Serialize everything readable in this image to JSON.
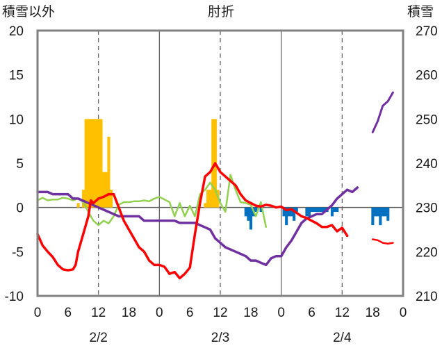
{
  "chart_data": {
    "type": "line",
    "title": "肘折",
    "left_axis_label": "積雪以外",
    "right_axis_label": "積雪",
    "left_ylim": [
      -10,
      20
    ],
    "right_ylim": [
      210,
      270
    ],
    "left_ticks": [
      "20",
      "15",
      "10",
      "5",
      "0",
      "-5",
      "-10"
    ],
    "right_ticks": [
      "270",
      "260",
      "250",
      "240",
      "230",
      "220",
      "210"
    ],
    "x_hour_ticks": [
      "0",
      "6",
      "12",
      "18",
      "0",
      "6",
      "12",
      "18",
      "0",
      "6",
      "12",
      "18",
      "0"
    ],
    "day_labels": [
      {
        "label": "2/2",
        "hour": 12
      },
      {
        "label": "2/3",
        "hour": 36
      },
      {
        "label": "2/4",
        "hour": 60
      }
    ],
    "x_range_hours": [
      0,
      72
    ],
    "grid": "dashed vertical lines at 12h, solid at day boundaries",
    "colors": {
      "precipitation": "#ffc000",
      "snow_change": "#0070c0",
      "temperature": "#ff0000",
      "wind": "#92d050",
      "snow_depth": "#7030a0",
      "grid": "#595959"
    },
    "precipitation_bars": [
      [
        8,
        0.5
      ],
      [
        9,
        2
      ],
      [
        9.5,
        10
      ],
      [
        10,
        10
      ],
      [
        10.5,
        10
      ],
      [
        11,
        10
      ],
      [
        11.5,
        10
      ],
      [
        12,
        10
      ],
      [
        12.5,
        10
      ],
      [
        13,
        4
      ],
      [
        13.5,
        4
      ],
      [
        14,
        8
      ],
      [
        14.5,
        2
      ],
      [
        33,
        0.5
      ],
      [
        33.5,
        2
      ],
      [
        34,
        2
      ],
      [
        34.5,
        10
      ],
      [
        35,
        10
      ],
      [
        35.5,
        2
      ]
    ],
    "snow_change_bars": [
      [
        41,
        -1
      ],
      [
        41.5,
        -1.5
      ],
      [
        42,
        -2.5
      ],
      [
        42.5,
        -1
      ],
      [
        43,
        -0.5
      ],
      [
        44,
        -0.5
      ],
      [
        48.5,
        -1
      ],
      [
        49,
        -2
      ],
      [
        49.5,
        -1
      ],
      [
        50,
        -1
      ],
      [
        50.5,
        -1.5
      ],
      [
        51,
        -0.5
      ],
      [
        53,
        -1
      ],
      [
        53.5,
        -1
      ],
      [
        54,
        -0.5
      ],
      [
        54.5,
        -0.5
      ],
      [
        55,
        -0.5
      ],
      [
        55.5,
        -0.5
      ],
      [
        56,
        -0.5
      ],
      [
        56.5,
        -0.5
      ],
      [
        57,
        -0.5
      ],
      [
        58,
        -1
      ],
      [
        58.5,
        -0.5
      ],
      [
        59,
        -0.5
      ],
      [
        66,
        -2
      ],
      [
        66.5,
        -1
      ],
      [
        67,
        -1
      ],
      [
        67.5,
        -2
      ],
      [
        68,
        -1
      ],
      [
        68.5,
        -1
      ],
      [
        69,
        -1.5
      ]
    ],
    "series": [
      {
        "key": "temperature",
        "axis": "left",
        "points": [
          [
            0,
            -3
          ],
          [
            1,
            -4.3
          ],
          [
            2,
            -5
          ],
          [
            3,
            -5.6
          ],
          [
            4,
            -6.5
          ],
          [
            5,
            -7
          ],
          [
            6,
            -7.1
          ],
          [
            7,
            -7
          ],
          [
            7.5,
            -6.5
          ],
          [
            8,
            -5
          ],
          [
            9,
            -3
          ],
          [
            10,
            -1
          ],
          [
            10.5,
            0.8
          ],
          [
            11,
            0.5
          ],
          [
            12,
            1
          ],
          [
            13,
            1.2
          ],
          [
            14,
            1.5
          ],
          [
            15,
            1.5
          ],
          [
            16,
            0
          ],
          [
            17,
            -1.5
          ],
          [
            18,
            -2.5
          ],
          [
            19,
            -3.5
          ],
          [
            20,
            -4.5
          ],
          [
            21,
            -5
          ],
          [
            22,
            -6
          ],
          [
            23,
            -6.5
          ],
          [
            24,
            -6.5
          ],
          [
            25,
            -6.7
          ],
          [
            26,
            -7.5
          ],
          [
            27,
            -7.3
          ],
          [
            28,
            -8
          ],
          [
            29,
            -7.5
          ],
          [
            30,
            -6.8
          ],
          [
            31,
            -3
          ],
          [
            32,
            0.5
          ],
          [
            33,
            3.5
          ],
          [
            34,
            4
          ],
          [
            35,
            5
          ],
          [
            36,
            4
          ],
          [
            37,
            3.5
          ],
          [
            38,
            3
          ],
          [
            39,
            2.5
          ],
          [
            40,
            1.5
          ],
          [
            41,
            0.8
          ],
          [
            42,
            0.5
          ],
          [
            43,
            0.2
          ],
          [
            44,
            0.1
          ],
          [
            45,
            0.3
          ],
          [
            46,
            0.2
          ],
          [
            47,
            0
          ],
          [
            48,
            0.1
          ],
          [
            49,
            -0.3
          ],
          [
            50,
            -0.2
          ],
          [
            51,
            -0.6
          ],
          [
            52,
            -1
          ],
          [
            53,
            -1.2
          ],
          [
            54,
            -1.5
          ],
          [
            55,
            -1.8
          ],
          [
            56,
            -2.2
          ],
          [
            57,
            -2.2
          ],
          [
            58,
            -2
          ],
          [
            59,
            -2.7
          ],
          [
            60,
            -2.3
          ],
          [
            61,
            -3.2
          ]
        ]
      },
      {
        "key": "temperature_forecast",
        "axis": "left",
        "points": [
          [
            66,
            -3.6
          ],
          [
            67,
            -3.7
          ],
          [
            68,
            -4
          ],
          [
            69,
            -4.1
          ],
          [
            70,
            -4
          ]
        ]
      },
      {
        "key": "wind",
        "axis": "left",
        "points": [
          [
            0,
            0.8
          ],
          [
            1,
            1.1
          ],
          [
            2,
            0.8
          ],
          [
            3,
            0.9
          ],
          [
            4,
            0.9
          ],
          [
            5,
            1.1
          ],
          [
            6,
            1
          ],
          [
            7,
            0.8
          ],
          [
            8,
            1
          ],
          [
            9,
            0.6
          ],
          [
            10,
            -0.5
          ],
          [
            11,
            -1.5
          ],
          [
            12,
            -2
          ],
          [
            13,
            -1.5
          ],
          [
            14,
            -1.8
          ],
          [
            15,
            -1
          ],
          [
            16,
            0.3
          ],
          [
            17,
            0.6
          ],
          [
            18,
            0.6
          ],
          [
            19,
            0.7
          ],
          [
            20,
            0.7
          ],
          [
            21,
            0.8
          ],
          [
            22,
            0.7
          ],
          [
            23,
            1
          ],
          [
            24,
            1.2
          ],
          [
            25,
            0.9
          ],
          [
            26,
            0.6
          ],
          [
            27,
            -1
          ],
          [
            28,
            0.5
          ],
          [
            29,
            -1
          ],
          [
            30,
            0.2
          ],
          [
            31,
            -1
          ],
          [
            32,
            1.5
          ],
          [
            33,
            2
          ],
          [
            34,
            2.8
          ],
          [
            35,
            2
          ],
          [
            36,
            0.5
          ],
          [
            37,
            -0.5
          ],
          [
            38,
            3.7
          ],
          [
            39,
            2
          ],
          [
            40,
            0.6
          ],
          [
            41,
            0.5
          ],
          [
            42,
            0.3
          ],
          [
            43,
            -1
          ],
          [
            44,
            0.6
          ],
          [
            45,
            -2.2
          ]
        ]
      },
      {
        "key": "snow_depth",
        "axis": "right",
        "points": [
          [
            0,
            233.5
          ],
          [
            2,
            233.5
          ],
          [
            3,
            233
          ],
          [
            6,
            233
          ],
          [
            7,
            232
          ],
          [
            8,
            232
          ],
          [
            9,
            231.5
          ],
          [
            10,
            231
          ],
          [
            11,
            230.5
          ],
          [
            12,
            230
          ],
          [
            13,
            229.5
          ],
          [
            14,
            229
          ],
          [
            15,
            228.5
          ],
          [
            16,
            228
          ],
          [
            18,
            228
          ],
          [
            20,
            228
          ],
          [
            21,
            227
          ],
          [
            24,
            227
          ],
          [
            27,
            227
          ],
          [
            28,
            226.5
          ],
          [
            31,
            226.5
          ],
          [
            33,
            225.5
          ],
          [
            34,
            225
          ],
          [
            35,
            223
          ],
          [
            36,
            222
          ],
          [
            37,
            221
          ],
          [
            38,
            220.5
          ],
          [
            39,
            220
          ],
          [
            40,
            219.5
          ],
          [
            41,
            219
          ],
          [
            42,
            218
          ],
          [
            43,
            218
          ],
          [
            44,
            217.5
          ],
          [
            45,
            217
          ],
          [
            46,
            218.5
          ],
          [
            47,
            219
          ],
          [
            48,
            219
          ],
          [
            49,
            221
          ],
          [
            50,
            222.5
          ],
          [
            51,
            224.5
          ],
          [
            52,
            226.5
          ],
          [
            53,
            227.5
          ],
          [
            54,
            228
          ],
          [
            55,
            228.5
          ],
          [
            56,
            228.5
          ],
          [
            57,
            229.5
          ],
          [
            58,
            230.5
          ],
          [
            59,
            232
          ],
          [
            60,
            233
          ],
          [
            61,
            234
          ],
          [
            62,
            233.5
          ],
          [
            63,
            234.5
          ]
        ]
      },
      {
        "key": "snow_depth_forecast",
        "axis": "right",
        "points": [
          [
            66,
            247
          ],
          [
            67,
            249.5
          ],
          [
            68,
            253
          ],
          [
            69,
            254
          ],
          [
            70,
            256
          ]
        ]
      }
    ]
  }
}
